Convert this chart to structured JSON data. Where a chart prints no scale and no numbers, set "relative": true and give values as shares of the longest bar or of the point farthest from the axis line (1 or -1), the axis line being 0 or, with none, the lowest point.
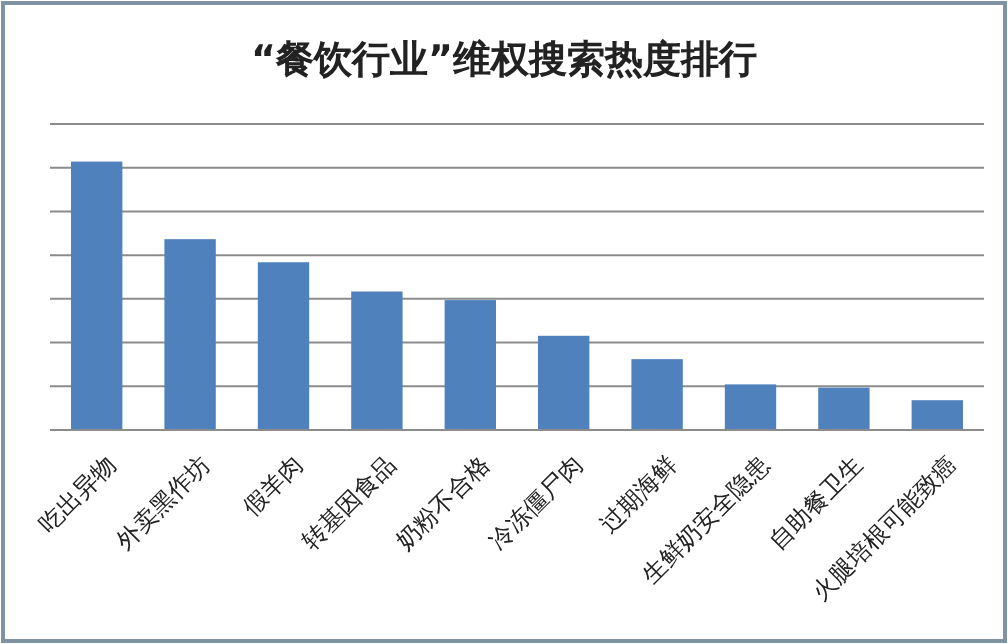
{
  "chart_data": {
    "type": "bar",
    "title": "“餐饮行业”维权搜索热度排行",
    "categories": [
      "吃出异物",
      "外卖黑作坊",
      "假羊肉",
      "转基因食品",
      "奶粉不合格",
      "冷冻僵尸肉",
      "过期海鲜",
      "生鲜奶安全隐患",
      "自助餐卫生",
      "火腿培根可能致癌"
    ],
    "values": [
      1,
      0.711,
      0.625,
      0.516,
      0.484,
      0.351,
      0.264,
      0.17,
      0.158,
      0.111
    ],
    "color": "#4f81bd",
    "relative": true,
    "grid": "y"
  }
}
